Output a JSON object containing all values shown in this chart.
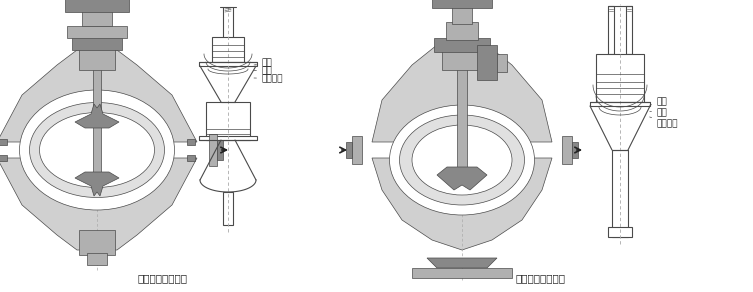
{
  "bg_color": "#ffffff",
  "lc": "#4a4a4a",
  "gray1": "#c8c8c8",
  "gray2": "#a0a0a0",
  "gray3": "#808080",
  "gray4": "#e8e8e8",
  "label1_title": "双座调节阀结构图",
  "label2_title": "单座调节阀结构图",
  "ann": [
    "快开",
    "线性",
    "等百分比"
  ],
  "title_fontsize": 7.5,
  "ann_fontsize": 6.5,
  "fig_width": 7.53,
  "fig_height": 2.92,
  "dpi": 100
}
